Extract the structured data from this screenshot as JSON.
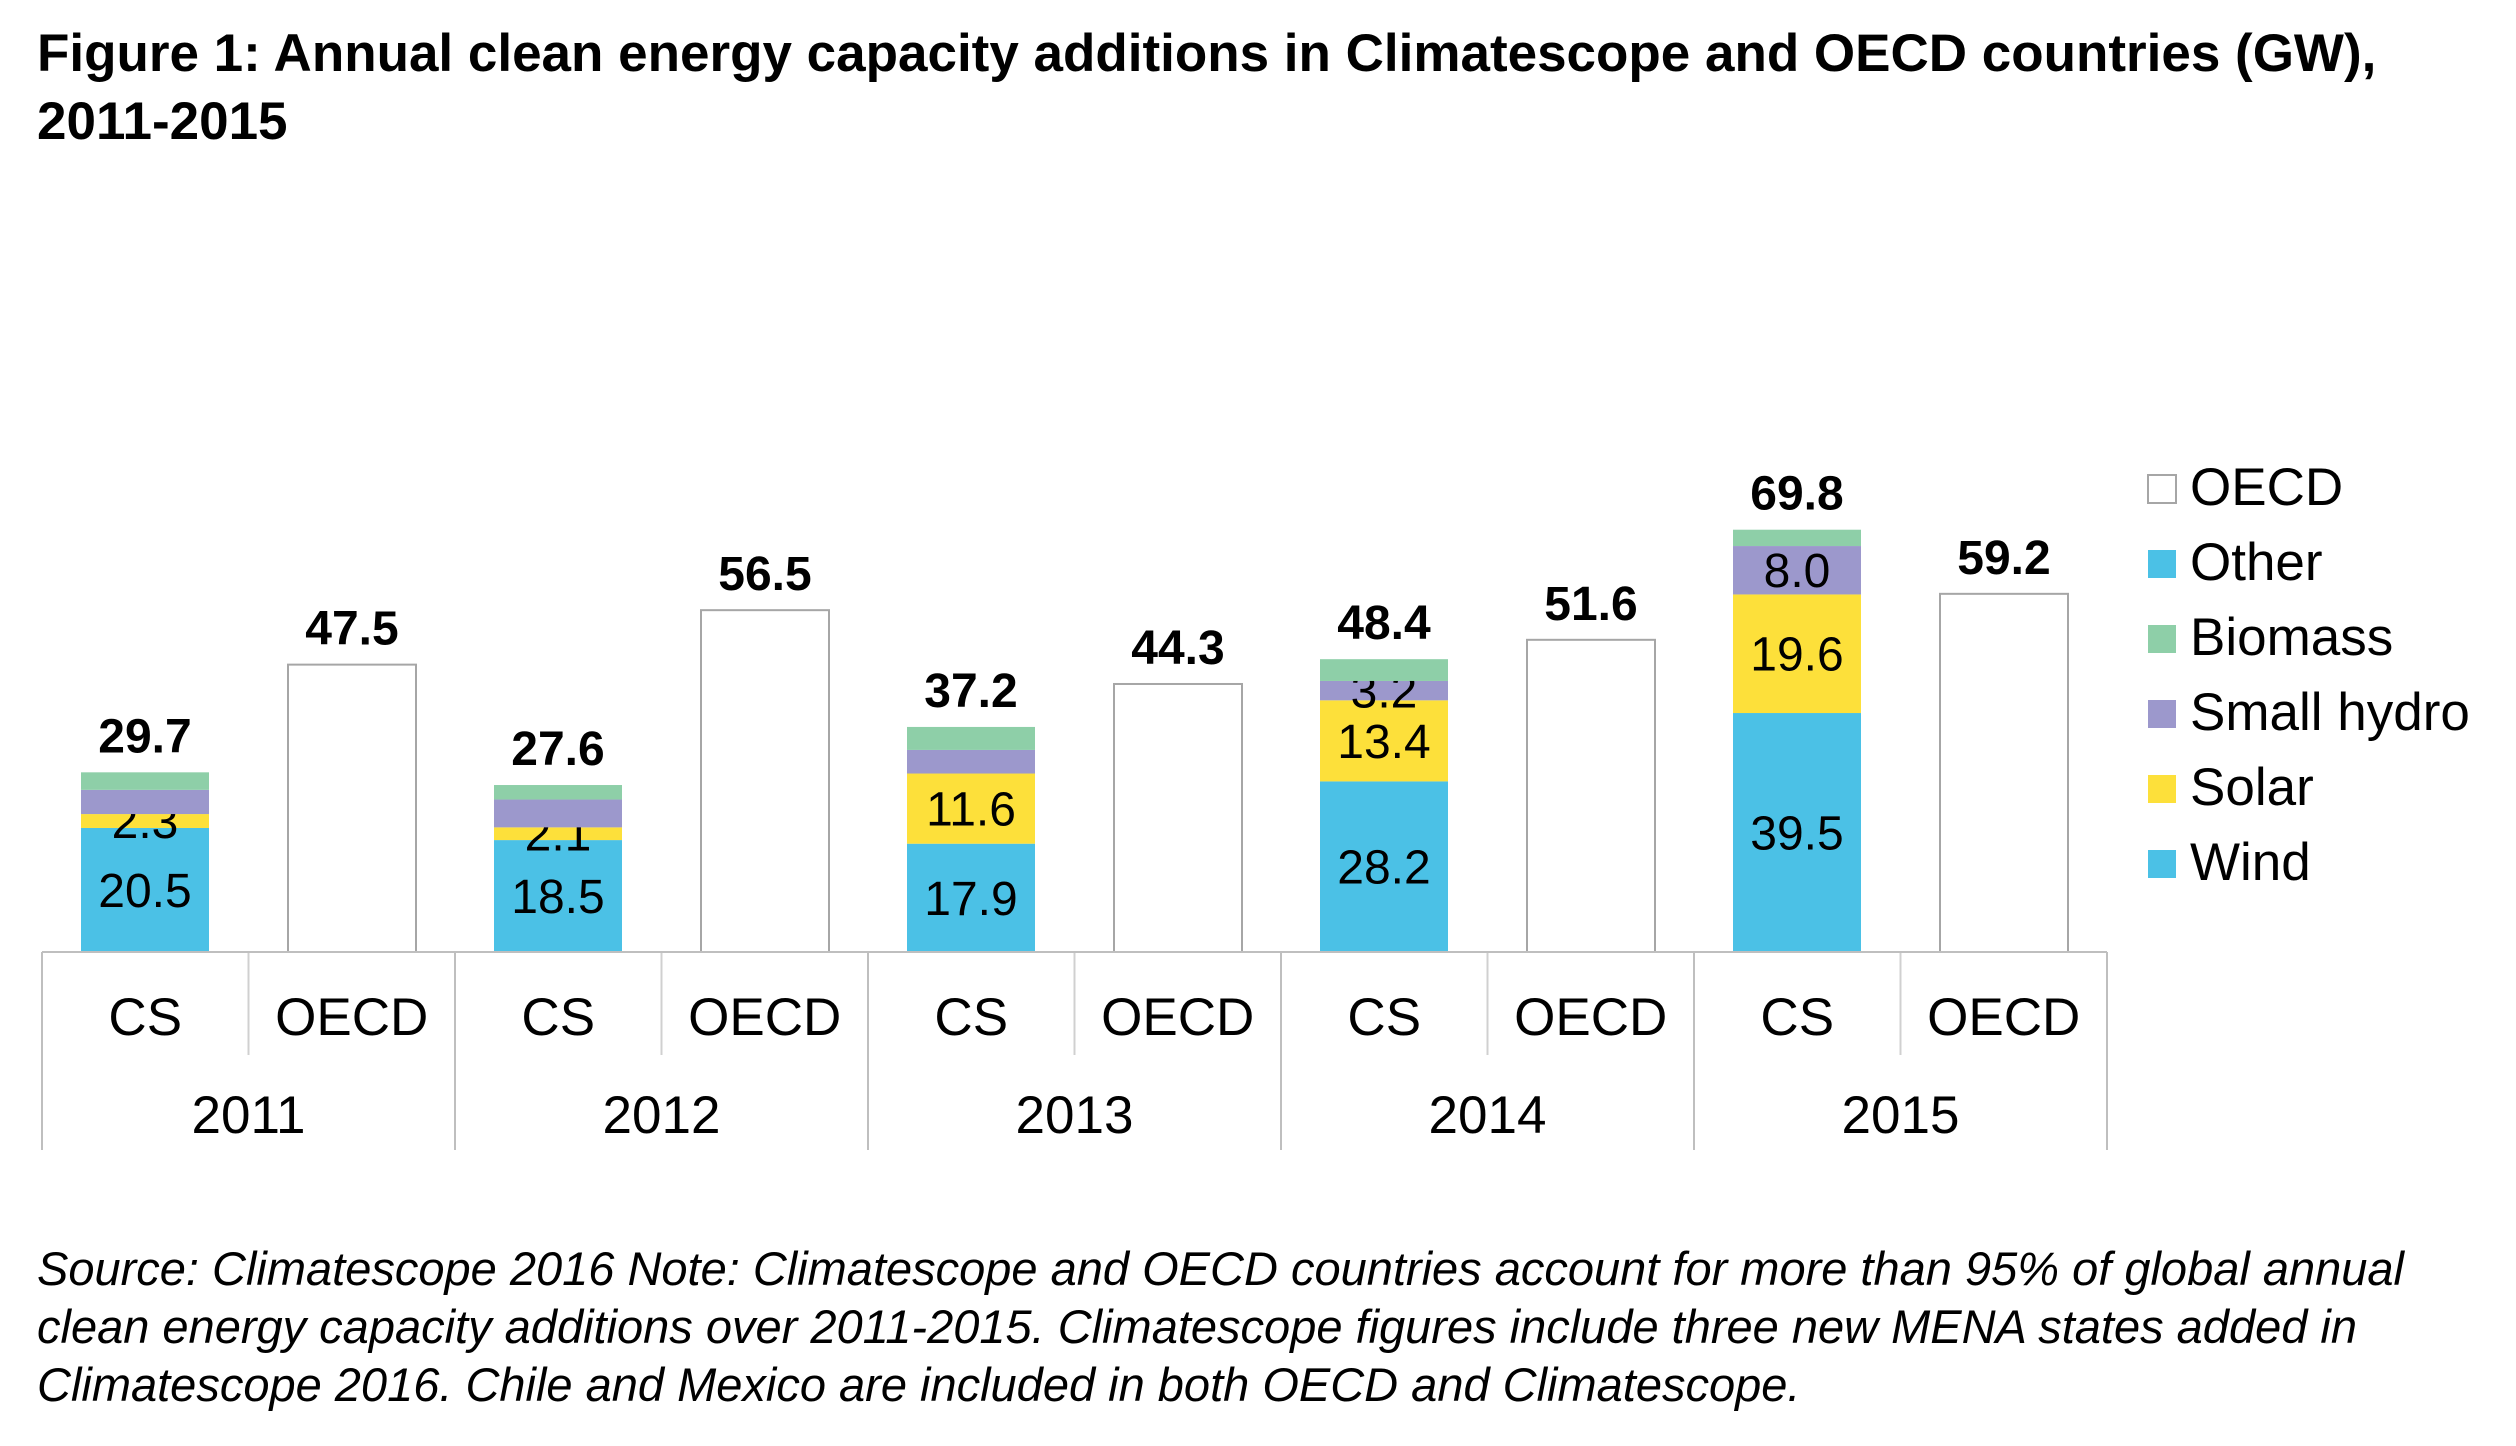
{
  "title": "Figure 1: Annual clean energy capacity additions in Climatescope and OECD countries (GW), 2011-2015",
  "note": "Source: Climatescope 2016 Note: Climatescope and OECD countries account for more than 95% of global annual clean energy capacity additions over 2011-2015. Climatescope figures include three new MENA states added in Climatescope 2016. Chile and Mexico are included in both OECD and Climatescope.",
  "chart_data": {
    "type": "bar",
    "stacked": true,
    "groups": [
      "2011",
      "2012",
      "2013",
      "2014",
      "2015"
    ],
    "bar_labels": [
      "CS",
      "OECD"
    ],
    "series": [
      {
        "name": "Wind",
        "color": "#4bc1e6",
        "cs_values": [
          20.5,
          18.5,
          17.9,
          28.2,
          39.5
        ],
        "value_labels": [
          "20.5",
          "18.5",
          "17.9",
          "28.2",
          "39.5"
        ]
      },
      {
        "name": "Solar",
        "color": "#fde03a",
        "cs_values": [
          2.3,
          2.1,
          11.6,
          13.4,
          19.6
        ],
        "value_labels": [
          "2.3",
          "2.1",
          "11.6",
          "13.4",
          "19.6"
        ]
      },
      {
        "name": "Small hydro",
        "color": "#9c98cc",
        "cs_values": [
          4.0,
          4.6,
          3.9,
          3.2,
          8.0
        ],
        "value_labels": [
          "",
          "",
          "",
          "3.2",
          "8.0"
        ]
      },
      {
        "name": "Biomass",
        "color": "#8ecfa8",
        "cs_values": [
          2.9,
          2.4,
          3.8,
          3.6,
          2.7
        ],
        "value_labels": [
          "",
          "",
          "",
          "",
          ""
        ]
      },
      {
        "name": "Other",
        "color": "#4bc1e6",
        "cs_values": [
          0,
          0,
          0,
          0,
          0
        ],
        "value_labels": [
          "",
          "",
          "",
          "",
          ""
        ]
      },
      {
        "name": "OECD",
        "color": "#ffffff",
        "oecd_values": [
          47.5,
          56.5,
          44.3,
          51.6,
          59.2
        ]
      }
    ],
    "cs_totals": [
      "29.7",
      "27.6",
      "37.2",
      "48.4",
      "69.8"
    ],
    "oecd_totals": [
      "47.5",
      "56.5",
      "44.3",
      "51.6",
      "59.2"
    ],
    "legend": [
      "OECD",
      "Other",
      "Biomass",
      "Small hydro",
      "Solar",
      "Wind"
    ],
    "legend_position": "right",
    "ylim": [
      0,
      75
    ],
    "grid": false,
    "xlabel": "",
    "ylabel": ""
  }
}
